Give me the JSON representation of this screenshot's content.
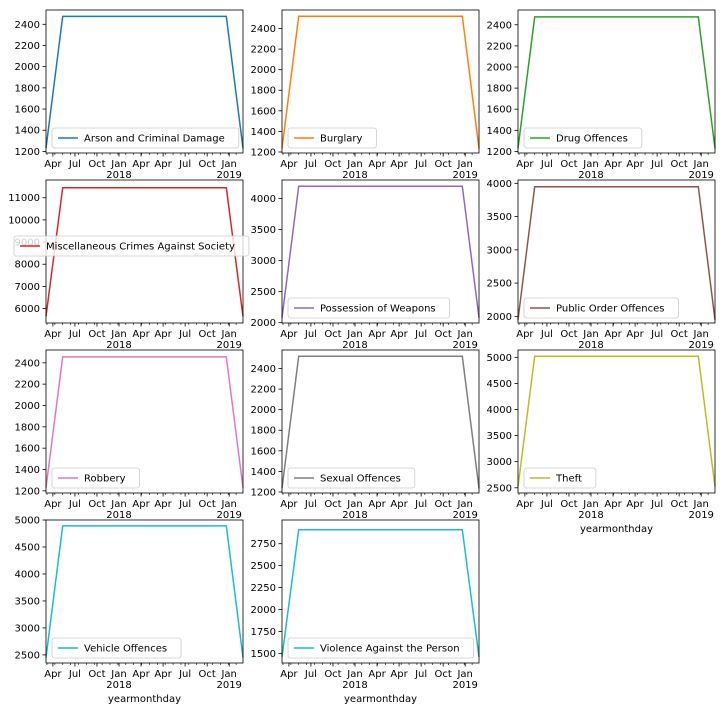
{
  "chart_data": {
    "type": "line",
    "xlabel": "yearmonthday",
    "x_ticks": {
      "major": [
        "Apr",
        "Jul",
        "Oct",
        "Jan\n2018",
        "Apr",
        "Apr",
        "Jul",
        "Oct",
        "Jan\n2019"
      ]
    },
    "panels": [
      {
        "name": "Arson and Criminal Damage",
        "color": "#1f77b4",
        "yticks": [
          "1200",
          "1400",
          "1600",
          "1800",
          "2000",
          "2200",
          "2400"
        ],
        "ylim": [
          1185,
          2535
        ],
        "low": 1230,
        "high": 2475,
        "xlabel": ""
      },
      {
        "name": "Burglary",
        "color": "#ff7f0e",
        "yticks": [
          "1200",
          "1400",
          "1600",
          "1800",
          "2000",
          "2200",
          "2400"
        ],
        "ylim": [
          1190,
          2580
        ],
        "low": 1235,
        "high": 2520,
        "xlabel": ""
      },
      {
        "name": "Drug Offences",
        "color": "#2ca02c",
        "yticks": [
          "1200",
          "1400",
          "1600",
          "1800",
          "2000",
          "2200",
          "2400"
        ],
        "ylim": [
          1185,
          2540
        ],
        "low": 1230,
        "high": 2475,
        "xlabel": ""
      },
      {
        "name": "Miscellaneous Crimes Against Society",
        "color": "#d62728",
        "yticks": [
          "6000",
          "7000",
          "8000",
          "9000",
          "10000",
          "11000"
        ],
        "ylim": [
          5350,
          11800
        ],
        "low": 5650,
        "high": 11450,
        "xlabel": ""
      },
      {
        "name": "Possession of Weapons",
        "color": "#9467bd",
        "yticks": [
          "2000",
          "2500",
          "3000",
          "3500",
          "4000"
        ],
        "ylim": [
          1995,
          4300
        ],
        "low": 2080,
        "high": 4200,
        "xlabel": ""
      },
      {
        "name": "Public Order Offences",
        "color": "#8c564b",
        "yticks": [
          "2000",
          "2500",
          "3000",
          "3500",
          "4000"
        ],
        "ylim": [
          1900,
          4050
        ],
        "low": 1950,
        "high": 3950,
        "xlabel": ""
      },
      {
        "name": "Robbery",
        "color": "#e377c2",
        "yticks": [
          "1200",
          "1400",
          "1600",
          "1800",
          "2000",
          "2200",
          "2400"
        ],
        "ylim": [
          1180,
          2520
        ],
        "low": 1230,
        "high": 2455,
        "xlabel": ""
      },
      {
        "name": "Sexual Offences",
        "color": "#7f7f7f",
        "yticks": [
          "1200",
          "1400",
          "1600",
          "1800",
          "2000",
          "2200",
          "2400"
        ],
        "ylim": [
          1190,
          2580
        ],
        "low": 1235,
        "high": 2520,
        "xlabel": ""
      },
      {
        "name": "Theft",
        "color": "#bcbd22",
        "yticks": [
          "2500",
          "3000",
          "3500",
          "4000",
          "4500",
          "5000"
        ],
        "ylim": [
          2400,
          5140
        ],
        "low": 2520,
        "high": 5020,
        "xlabel": "yearmonthday"
      },
      {
        "name": "Vehicle Offences",
        "color": "#17becf",
        "yticks": [
          "2500",
          "3000",
          "3500",
          "4000",
          "4500",
          "5000"
        ],
        "ylim": [
          2350,
          5000
        ],
        "low": 2450,
        "high": 4890,
        "xlabel": "yearmonthday"
      },
      {
        "name": "Violence Against the Person",
        "color": "#17becf",
        "yticks": [
          "1500",
          "1750",
          "2000",
          "2250",
          "2500",
          "2750"
        ],
        "ylim": [
          1390,
          3020
        ],
        "low": 1460,
        "high": 2910,
        "xlabel": "yearmonthday"
      }
    ],
    "line_shape": [
      "low",
      "high",
      "high",
      "low"
    ],
    "grid": false,
    "legend_placement": "lower-left"
  }
}
